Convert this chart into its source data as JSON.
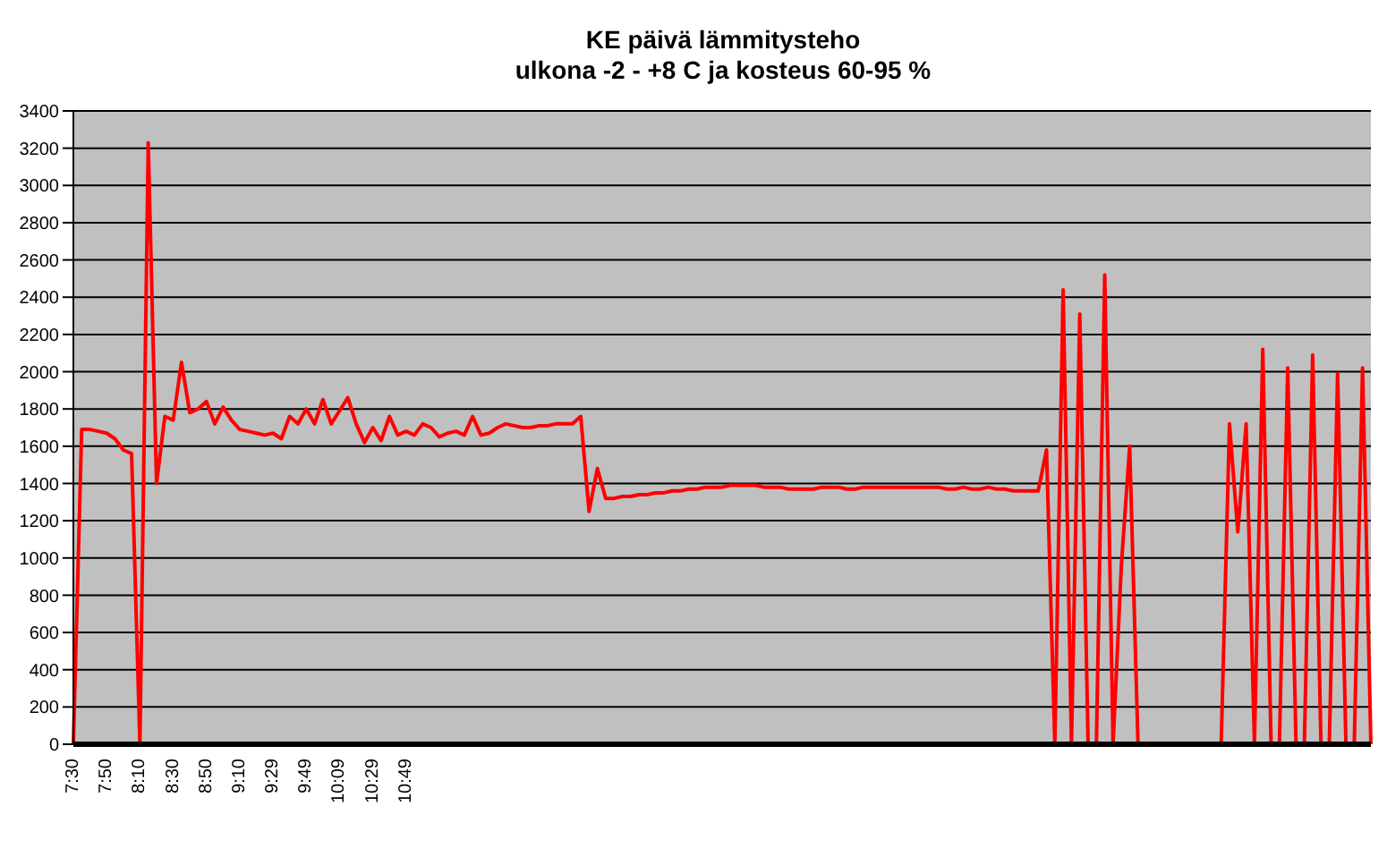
{
  "chart_data": {
    "type": "line",
    "title": "KE päivä lämmitysteho\nulkona -2 - +8 C ja kosteus 60-95 %",
    "categories": [
      "7:30",
      null,
      null,
      null,
      "7:50",
      null,
      null,
      null,
      "8:10",
      null,
      null,
      null,
      "8:30",
      null,
      null,
      null,
      "8:50",
      null,
      null,
      null,
      "9:10",
      null,
      null,
      null,
      "9:29",
      null,
      null,
      null,
      "9:49",
      null,
      null,
      null,
      "10:09",
      null,
      null,
      null,
      "10:29",
      null,
      null,
      null,
      "10:49",
      null,
      null,
      null,
      null,
      null,
      null,
      null,
      null,
      null,
      null,
      null,
      null,
      null,
      null,
      null,
      null,
      null,
      null,
      null,
      null,
      null,
      null,
      null,
      null,
      null,
      null,
      null,
      null,
      null,
      null,
      null,
      null,
      null,
      null,
      null,
      null,
      null,
      null,
      null,
      null,
      null,
      null,
      null,
      null,
      null,
      null,
      null,
      null,
      null,
      null,
      null,
      null,
      null,
      null,
      null,
      null,
      null,
      null,
      null,
      null,
      null,
      null,
      null,
      null,
      null,
      null,
      null,
      null,
      null,
      null,
      null,
      null,
      null,
      null,
      null,
      null,
      null,
      null,
      null,
      null,
      null,
      null,
      null,
      null,
      null,
      null,
      null,
      null,
      null,
      null,
      null,
      null,
      null,
      null,
      null,
      null,
      null,
      null,
      null,
      null,
      null,
      null,
      null,
      null,
      null,
      null,
      null,
      null,
      null,
      null,
      null,
      null,
      null,
      null,
      null,
      null
    ],
    "values": [
      0,
      1690,
      1690,
      1680,
      1670,
      1640,
      1580,
      1560,
      0,
      3230,
      1400,
      1760,
      1740,
      2050,
      1780,
      1800,
      1840,
      1720,
      1810,
      1740,
      1690,
      1680,
      1670,
      1660,
      1670,
      1640,
      1760,
      1720,
      1800,
      1720,
      1850,
      1720,
      1790,
      1860,
      1720,
      1620,
      1700,
      1630,
      1760,
      1660,
      1680,
      1660,
      1720,
      1700,
      1650,
      1670,
      1680,
      1660,
      1760,
      1660,
      1670,
      1700,
      1720,
      1710,
      1700,
      1700,
      1710,
      1710,
      1720,
      1720,
      1720,
      1760,
      1250,
      1480,
      1320,
      1320,
      1330,
      1330,
      1340,
      1340,
      1350,
      1350,
      1360,
      1360,
      1370,
      1370,
      1380,
      1380,
      1380,
      1390,
      1390,
      1390,
      1390,
      1380,
      1380,
      1380,
      1370,
      1370,
      1370,
      1370,
      1380,
      1380,
      1380,
      1370,
      1370,
      1380,
      1380,
      1380,
      1380,
      1380,
      1380,
      1380,
      1380,
      1380,
      1380,
      1370,
      1370,
      1380,
      1370,
      1370,
      1380,
      1370,
      1370,
      1360,
      1360,
      1360,
      1360,
      1580,
      0,
      2440,
      0,
      2310,
      0,
      0,
      2520,
      0,
      960,
      1600,
      0,
      0,
      0,
      0,
      0,
      0,
      0,
      0,
      0,
      0,
      0,
      1720,
      1140,
      1720,
      0,
      2120,
      0,
      0,
      2020,
      0,
      0,
      2090,
      0,
      0,
      1990,
      0,
      0,
      2020,
      0
    ],
    "color": "#ff0000",
    "ylim": [
      0,
      3400
    ],
    "yticks": [
      0,
      200,
      400,
      600,
      800,
      1000,
      1200,
      1400,
      1600,
      1800,
      2000,
      2200,
      2400,
      2600,
      2800,
      3000,
      3200,
      3400
    ],
    "grid": "y"
  }
}
